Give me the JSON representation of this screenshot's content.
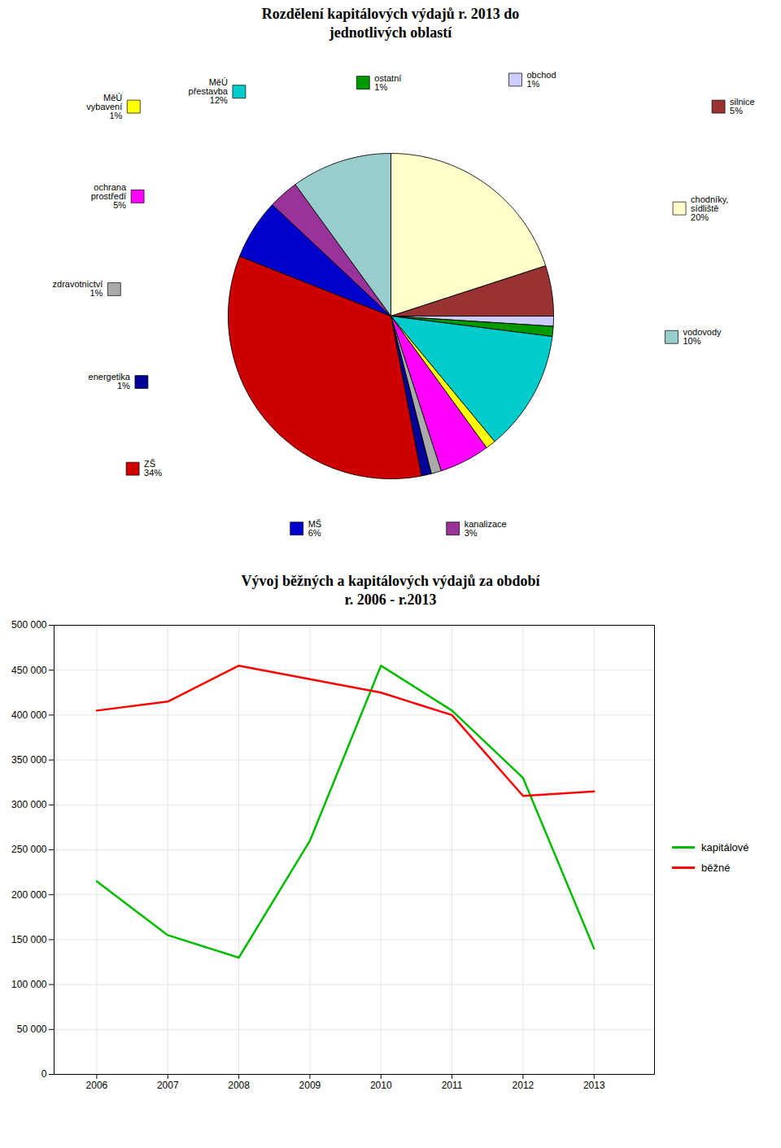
{
  "chart_data": [
    {
      "type": "pie",
      "title": "Rozdělení kapitálových výdajů r. 2013 do\njednotlivých oblastí",
      "categories": [
        "chodníky,\nsídliště",
        "silnice",
        "obchod",
        "ostatní",
        "MěÚ\npřestavba",
        "MěÚ\nvybavení",
        "ochrana\nprostředí",
        "zdravotnictví",
        "energetika",
        "ZŠ",
        "MŠ",
        "kanalizace",
        "vodovody"
      ],
      "values": [
        20,
        5,
        1,
        1,
        12,
        1,
        5,
        1,
        1,
        34,
        6,
        3,
        10
      ],
      "value_labels": [
        "20%",
        "5%",
        "1%",
        "1%",
        "12%",
        "1%",
        "5%",
        "1%",
        "1%",
        "34%",
        "6%",
        "3%",
        "10%"
      ],
      "colors": [
        "#FFFFCC",
        "#993333",
        "#CCCCFF",
        "#009900",
        "#00CCCC",
        "#FFFF00",
        "#FF00FF",
        "#AAAAAA",
        "#000099",
        "#CC0000",
        "#0000CC",
        "#993399",
        "#99CCCC"
      ]
    },
    {
      "type": "line",
      "title": "Vývoj běžných a kapitálových výdajů za období\nr. 2006 - r.2013",
      "x": [
        2006,
        2007,
        2008,
        2009,
        2010,
        2011,
        2012,
        2013
      ],
      "series": [
        {
          "name": "kapitálové",
          "color": "#00BB00",
          "values": [
            215000,
            155000,
            130000,
            260000,
            455000,
            405000,
            330000,
            140000
          ]
        },
        {
          "name": "běžné",
          "color": "#FF0000",
          "values": [
            405000,
            415000,
            455000,
            440000,
            425000,
            400000,
            310000,
            315000
          ]
        }
      ],
      "xlim": [
        2005.4,
        2013.85
      ],
      "xticks": [
        2006,
        2007,
        2008,
        2009,
        2010,
        2011,
        2012,
        2013
      ],
      "ylim": [
        0,
        500000
      ],
      "yticks": [
        0,
        {
          "value": 50000,
          "label": "50 000"
        },
        {
          "value": 100000,
          "label": "100 000"
        },
        {
          "value": 150000,
          "label": "150 000"
        },
        {
          "value": 200000,
          "label": "200 000"
        },
        {
          "value": 250000,
          "label": "250 000"
        },
        {
          "value": 300000,
          "label": "300 000"
        },
        {
          "value": 350000,
          "label": "350 000"
        },
        {
          "value": 400000,
          "label": "400 000"
        },
        {
          "value": 450000,
          "label": "450 000"
        },
        {
          "value": 500000,
          "label": "500 000"
        }
      ],
      "grid": true,
      "legend": "right"
    }
  ]
}
